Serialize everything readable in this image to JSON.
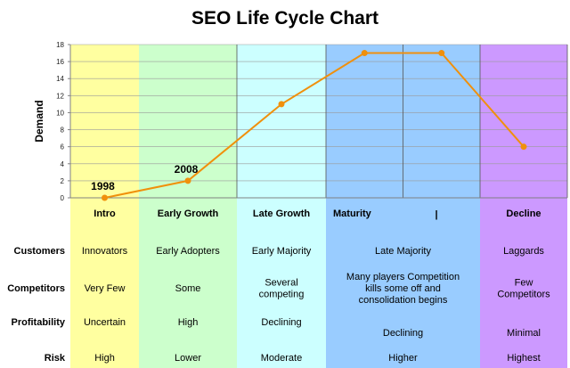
{
  "title": "SEO Life Cycle Chart",
  "colors": {
    "line": "#F0900C",
    "intro": "#FFFFA0",
    "early_growth": "#CCFFCC",
    "late_growth": "#CCFFFF",
    "maturity": "#99CCFF",
    "decline": "#CC99FF",
    "grid": "#9a9a9a",
    "axis": "#808080"
  },
  "chart_data": {
    "type": "line",
    "title": "SEO Life Cycle Chart",
    "xlabel": "",
    "ylabel": "Demand",
    "ylim": [
      0,
      18
    ],
    "yticks": [
      0,
      2,
      4,
      6,
      8,
      10,
      12,
      14,
      16,
      18
    ],
    "grid": true,
    "x": [
      0.5,
      1.5,
      2.5,
      3.5,
      4.5,
      5.5
    ],
    "y": [
      0,
      2,
      11,
      17,
      17,
      6
    ],
    "point_labels": [
      {
        "index": 0,
        "text": "1998"
      },
      {
        "index": 1,
        "text": "2008"
      }
    ],
    "stages": [
      {
        "key": "intro",
        "title": "Intro",
        "x_start": 0,
        "x_end": 1
      },
      {
        "key": "early_growth",
        "title": "Early Growth",
        "x_start": 1,
        "x_end": 2
      },
      {
        "key": "late_growth",
        "title": "Late Growth",
        "x_start": 2,
        "x_end": 3
      },
      {
        "key": "maturity",
        "title": "Maturity",
        "x_start": 3,
        "x_end": 5,
        "divider": "|"
      },
      {
        "key": "decline",
        "title": "Decline",
        "x_start": 5,
        "x_end": 6
      }
    ]
  },
  "table": {
    "rows": [
      {
        "label": "Customers",
        "cells": [
          [
            "Innovators"
          ],
          [
            "Early Adopters"
          ],
          [
            "Early Majority"
          ],
          [
            "Late Majority"
          ],
          [
            "Laggards"
          ]
        ]
      },
      {
        "label": "Competitors",
        "cells": [
          [
            "Very Few"
          ],
          [
            "Some"
          ],
          [
            "Several",
            "competing"
          ],
          [
            "Many players Competition",
            "kills some off and",
            "consolidation begins"
          ],
          [
            "Few",
            "Competitors"
          ]
        ]
      },
      {
        "label": "Profitability",
        "cells": [
          [
            "Uncertain"
          ],
          [
            "High"
          ],
          [
            "Declining"
          ],
          [
            "Declining"
          ],
          [
            "Minimal"
          ]
        ]
      },
      {
        "label": "Risk",
        "cells": [
          [
            "High"
          ],
          [
            "Lower"
          ],
          [
            "Moderate"
          ],
          [
            "Higher"
          ],
          [
            "Highest"
          ]
        ]
      }
    ]
  }
}
